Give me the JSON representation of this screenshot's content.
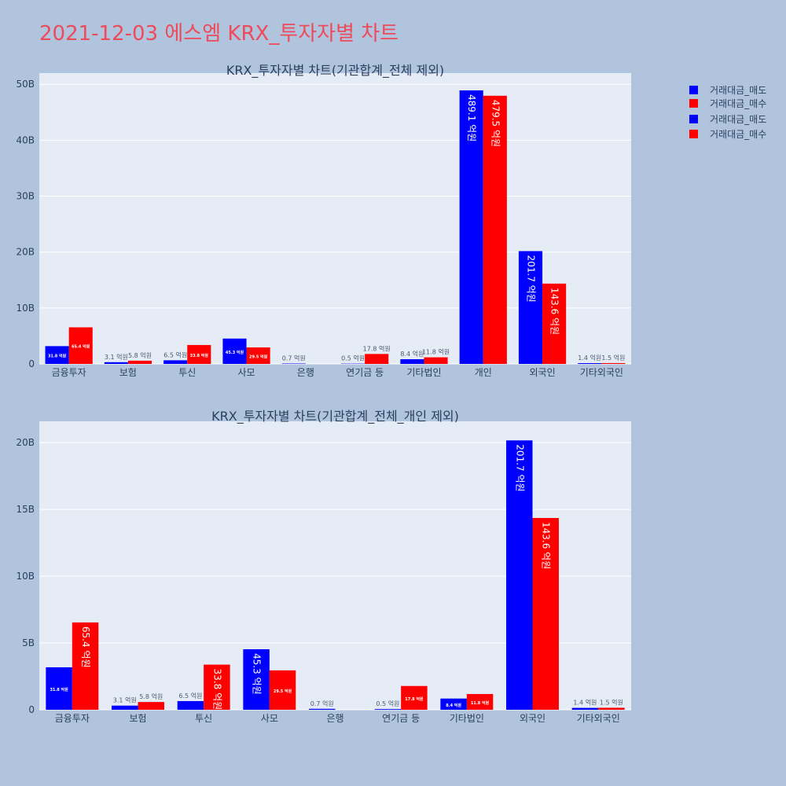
{
  "title": "2021-12-03 에스엠 KRX_투자자별 차트",
  "colors": {
    "sell": "#0000ff",
    "buy": "#ff0000",
    "plot_bg": "#e5ecf6",
    "page_bg": "#b0c4de",
    "title": "#ef4a5a"
  },
  "legend": [
    "거래대금_매도",
    "거래대금_매수",
    "거래대금_매도",
    "거래대금_매수"
  ],
  "chart_data": [
    {
      "type": "bar",
      "title": "KRX_투자자별 차트(기관합계_전체 제외)",
      "categories": [
        "금융투자",
        "보험",
        "투신",
        "사모",
        "은행",
        "연기금 등",
        "기타법인",
        "개인",
        "외국인",
        "기타외국인"
      ],
      "series": [
        {
          "name": "거래대금_매도",
          "values": [
            3.18,
            0.31,
            0.65,
            4.53,
            0.07,
            0.05,
            0.84,
            48.91,
            20.17,
            0.14
          ],
          "labels": [
            "31.8 억원",
            "3.1 억원",
            "6.5 억원",
            "45.3 억원",
            "0.7 억원",
            "0.5 억원",
            "8.4 억원",
            "489.1 억원",
            "201.7 억원",
            "1.4 억원"
          ]
        },
        {
          "name": "거래대금_매수",
          "values": [
            6.54,
            0.58,
            3.38,
            2.95,
            0,
            1.78,
            1.18,
            47.95,
            14.36,
            0.15
          ],
          "labels": [
            "65.4 억원",
            "5.8 억원",
            "33.8 억원",
            "29.5 억원",
            "",
            "17.8 억원",
            "11.8 억원",
            "479.5 억원",
            "143.6 억원",
            "1.5 억원"
          ]
        }
      ],
      "ylim": [
        0,
        52
      ],
      "yticks": [
        "0",
        "10B",
        "20B",
        "30B",
        "40B",
        "50B"
      ],
      "ytick_values": [
        0,
        10,
        20,
        30,
        40,
        50
      ]
    },
    {
      "type": "bar",
      "title": "KRX_투자자별 차트(기관합계_전체_개인 제외)",
      "categories": [
        "금융투자",
        "보험",
        "투신",
        "사모",
        "은행",
        "연기금 등",
        "기타법인",
        "외국인",
        "기타외국인"
      ],
      "series": [
        {
          "name": "거래대금_매도",
          "values": [
            3.18,
            0.31,
            0.65,
            4.53,
            0.07,
            0.05,
            0.84,
            20.17,
            0.14
          ],
          "labels": [
            "31.8 억원",
            "3.1 억원",
            "6.5 억원",
            "45.3 억원",
            "0.7 억원",
            "0.5 억원",
            "8.4 억원",
            "201.7 억원",
            "1.4 억원"
          ]
        },
        {
          "name": "거래대금_매수",
          "values": [
            6.54,
            0.58,
            3.38,
            2.95,
            0,
            1.78,
            1.18,
            14.36,
            0.15
          ],
          "labels": [
            "65.4 억원",
            "5.8 억원",
            "33.8 억원",
            "29.5 억원",
            "",
            "17.8 억원",
            "11.8 억원",
            "143.6 억원",
            "1.5 억원"
          ]
        }
      ],
      "ylim": [
        0,
        21.6
      ],
      "yticks": [
        "0",
        "5B",
        "10B",
        "15B",
        "20B"
      ],
      "ytick_values": [
        0,
        5,
        10,
        15,
        20
      ]
    }
  ]
}
